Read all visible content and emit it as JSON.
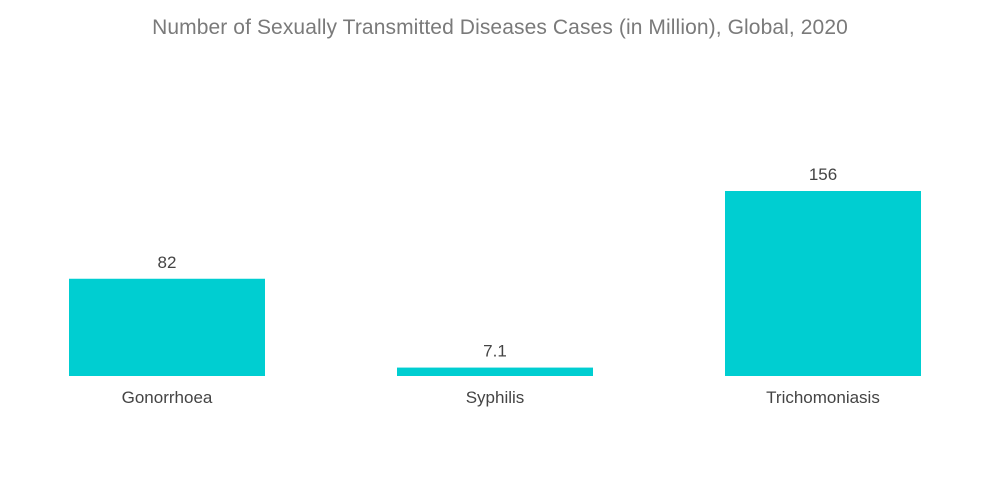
{
  "chart_data": {
    "type": "bar",
    "title": "Number of Sexually Transmitted Diseases Cases (in Million), Global, 2020",
    "categories": [
      "Gonorrhoea",
      "Syphilis",
      "Trichomoniasis"
    ],
    "series": [
      {
        "values": [
          82,
          7.1,
          156
        ],
        "labels": [
          "82",
          "7.1",
          "156"
        ]
      }
    ],
    "xlabel": "",
    "ylabel": "",
    "ylim": [
      0,
      156
    ],
    "grid": false,
    "legend": "none",
    "bar_color": "#00CED1"
  }
}
